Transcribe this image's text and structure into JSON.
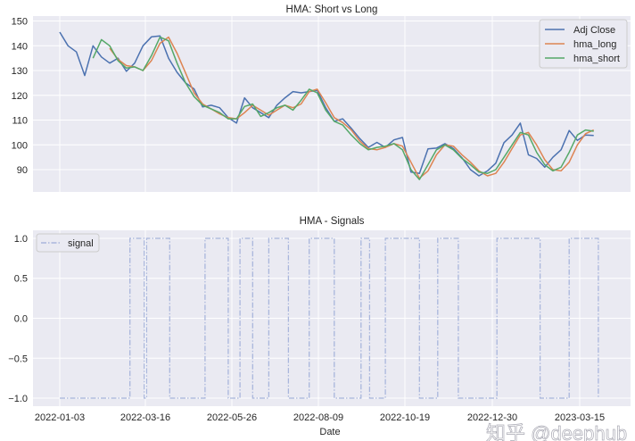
{
  "chart_data": [
    {
      "type": "line",
      "title": "HMA: Short vs Long",
      "xlabel": "",
      "ylabel": "",
      "ylim": [
        81,
        152
      ],
      "yticks": [
        90,
        100,
        110,
        120,
        130,
        140,
        150
      ],
      "xticks": [
        "2022-01-03",
        "2022-03-16",
        "2022-05-26",
        "2022-08-09",
        "2022-10-19",
        "2022-12-30",
        "2023-03-15"
      ],
      "grid": true,
      "legend": "top-right",
      "x": [
        "2022-01-03",
        "2022-01-10",
        "2022-01-17",
        "2022-01-24",
        "2022-01-31",
        "2022-02-07",
        "2022-02-14",
        "2022-02-21",
        "2022-02-28",
        "2022-03-07",
        "2022-03-14",
        "2022-03-21",
        "2022-03-28",
        "2022-04-04",
        "2022-04-11",
        "2022-04-18",
        "2022-04-25",
        "2022-05-02",
        "2022-05-09",
        "2022-05-16",
        "2022-05-23",
        "2022-05-30",
        "2022-06-06",
        "2022-06-13",
        "2022-06-20",
        "2022-06-27",
        "2022-07-04",
        "2022-07-11",
        "2022-07-18",
        "2022-07-25",
        "2022-08-01",
        "2022-08-08",
        "2022-08-15",
        "2022-08-22",
        "2022-08-29",
        "2022-09-05",
        "2022-09-12",
        "2022-09-19",
        "2022-09-26",
        "2022-10-03",
        "2022-10-10",
        "2022-10-17",
        "2022-10-24",
        "2022-10-31",
        "2022-11-07",
        "2022-11-14",
        "2022-11-21",
        "2022-11-28",
        "2022-12-05",
        "2022-12-12",
        "2022-12-19",
        "2022-12-26",
        "2023-01-02",
        "2023-01-09",
        "2023-01-16",
        "2023-01-23",
        "2023-01-30",
        "2023-02-06",
        "2023-02-13",
        "2023-02-20",
        "2023-02-27",
        "2023-03-06",
        "2023-03-13",
        "2023-03-20",
        "2023-03-27"
      ],
      "series": [
        {
          "name": "Adj Close",
          "color": "#4c72b0",
          "values": [
            145.5,
            140,
            137.5,
            128,
            140,
            135.5,
            133,
            135,
            129.7,
            133,
            140,
            143.6,
            144,
            135,
            129.3,
            125,
            122.6,
            115.3,
            116,
            115,
            111,
            108.8,
            119,
            115,
            113,
            111,
            116,
            119,
            121.5,
            121,
            121.5,
            122,
            115,
            109.5,
            110.5,
            106.7,
            102.5,
            99,
            101,
            99,
            102,
            103,
            89,
            88.5,
            98.4,
            98.7,
            100.5,
            98.5,
            94.8,
            90,
            87.5,
            89.5,
            92.6,
            100.9,
            104,
            108.8,
            96,
            94.5,
            91,
            95,
            98,
            105.8,
            101.8,
            104,
            103.8
          ]
        },
        {
          "name": "hma_long",
          "color": "#dd8452",
          "values": [
            null,
            null,
            null,
            null,
            null,
            null,
            139,
            134.5,
            132,
            131.5,
            130,
            134,
            141,
            143.5,
            137,
            129,
            121,
            116.5,
            114.5,
            112.5,
            111,
            110.5,
            113,
            116,
            114,
            112,
            114,
            116,
            115,
            116.5,
            121.5,
            122.5,
            117,
            111,
            109,
            106,
            101.5,
            98.5,
            98,
            99,
            100.5,
            99.5,
            93,
            86.5,
            89.5,
            96,
            100,
            99.5,
            96,
            93,
            89.5,
            87.5,
            88.5,
            93,
            98.5,
            104,
            105,
            100,
            94,
            90,
            89.5,
            93,
            100,
            104.5,
            106
          ]
        },
        {
          "name": "hma_short",
          "color": "#55a868",
          "values": [
            null,
            null,
            null,
            null,
            135,
            142.5,
            140,
            134,
            131,
            131.5,
            130,
            136,
            143.5,
            142,
            133,
            125,
            119.5,
            116,
            114.5,
            113,
            110.5,
            110.5,
            115.5,
            116.5,
            111.5,
            113,
            115,
            116,
            114,
            118,
            122.5,
            121,
            114,
            109.5,
            108,
            104,
            100.5,
            98,
            99,
            99.5,
            100.5,
            98,
            90,
            86,
            92,
            98,
            100,
            98,
            94.5,
            92,
            89,
            88.5,
            90,
            95,
            100,
            105,
            104,
            97,
            92,
            89.5,
            91,
            97,
            104,
            106,
            105.5
          ]
        }
      ]
    },
    {
      "type": "line",
      "title": "HMA - Signals",
      "xlabel": "Date",
      "ylabel": "",
      "ylim": [
        -1.1,
        1.1
      ],
      "yticks": [
        -1.0,
        -0.5,
        0.0,
        0.5,
        1.0
      ],
      "ytick_labels": [
        "−1.0",
        "−0.5",
        "0.0",
        "0.5",
        "1.0"
      ],
      "xticks": [
        "2022-01-03",
        "2022-03-16",
        "2022-05-26",
        "2022-08-09",
        "2022-10-19",
        "2022-12-30",
        "2023-03-15"
      ],
      "grid": true,
      "legend": "top-left",
      "series": [
        {
          "name": "signal",
          "color": "#a9b6dc",
          "linestyle": "dashdot",
          "step": true,
          "points": [
            [
              "2022-01-03",
              -1
            ],
            [
              "2022-03-03",
              1
            ],
            [
              "2022-03-15",
              -1
            ],
            [
              "2022-03-17",
              1
            ],
            [
              "2022-04-05",
              -1
            ],
            [
              "2022-05-04",
              1
            ],
            [
              "2022-05-23",
              -1
            ],
            [
              "2022-06-02",
              1
            ],
            [
              "2022-06-13",
              -1
            ],
            [
              "2022-06-27",
              1
            ],
            [
              "2022-07-14",
              -1
            ],
            [
              "2022-08-01",
              1
            ],
            [
              "2022-08-22",
              -1
            ],
            [
              "2022-09-13",
              1
            ],
            [
              "2022-09-20",
              -1
            ],
            [
              "2022-10-03",
              1
            ],
            [
              "2022-10-31",
              -1
            ],
            [
              "2022-11-15",
              1
            ],
            [
              "2022-12-02",
              -1
            ],
            [
              "2023-01-03",
              1
            ],
            [
              "2023-02-09",
              -1
            ],
            [
              "2023-03-06",
              1
            ],
            [
              "2023-03-31",
              -1
            ]
          ]
        }
      ]
    }
  ],
  "watermark": "知乎 @deephub"
}
